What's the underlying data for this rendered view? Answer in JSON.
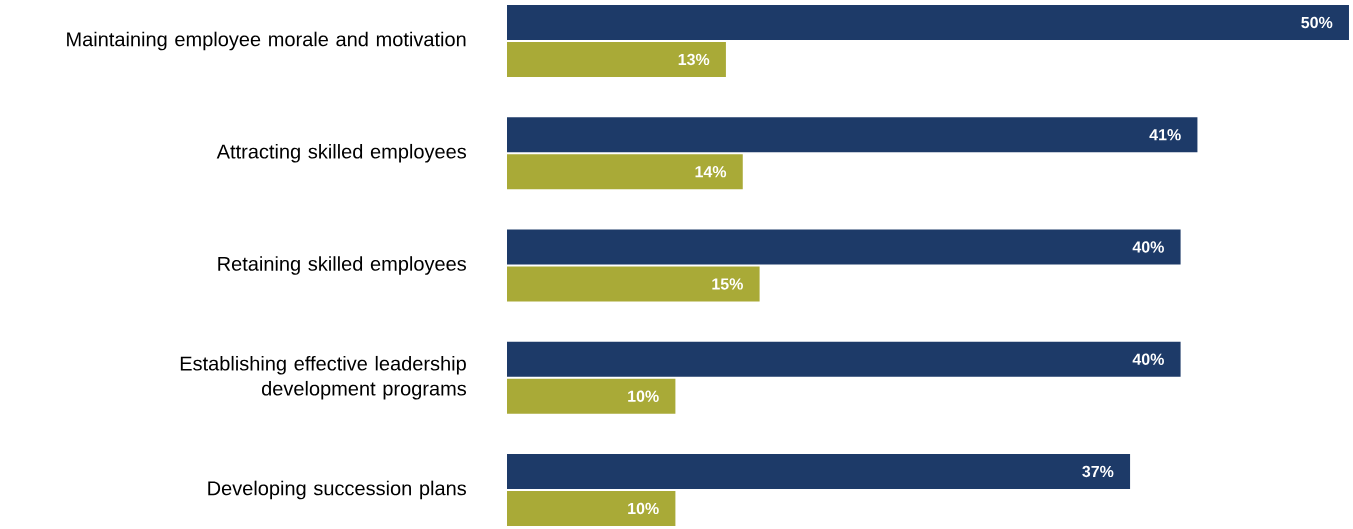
{
  "chart_data": {
    "type": "bar",
    "orientation": "horizontal",
    "categories": [
      "Maintaining employee morale and motivation",
      "Attracting skilled employees",
      "Retaining skilled employees",
      "Establishing effective leadership development programs",
      "Developing succession plans"
    ],
    "series": [
      {
        "color": "#1d3a68",
        "values": [
          50,
          41,
          40,
          40,
          37
        ],
        "value_labels": [
          "50%",
          "41%",
          "40%",
          "40%",
          "37%"
        ]
      },
      {
        "color": "#a9aa37",
        "values": [
          13,
          14,
          15,
          10,
          10
        ],
        "value_labels": [
          "13%",
          "14%",
          "15%",
          "10%",
          "10%"
        ]
      }
    ],
    "xlim": [
      0,
      50
    ],
    "tick_labels": "y",
    "grid": false
  }
}
